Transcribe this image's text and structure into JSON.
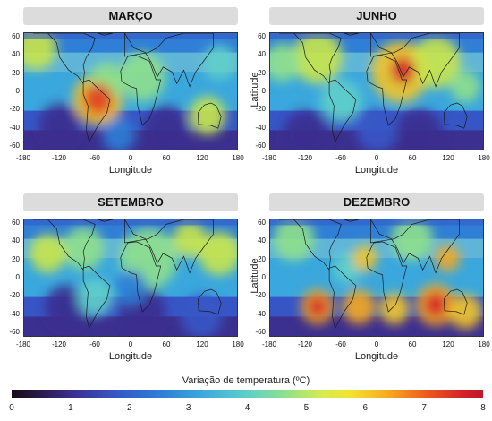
{
  "panels": [
    {
      "title": "MARÇO",
      "show_ylabel": false,
      "blobs": [
        {
          "lon": -55,
          "lat": -8,
          "r": 18,
          "color": "#e33d1f"
        },
        {
          "lon": -55,
          "lat": -8,
          "r": 30,
          "color": "#f2c52a"
        },
        {
          "lon": -40,
          "lat": 10,
          "r": 22,
          "color": "#8fe08c"
        },
        {
          "lon": -160,
          "lat": 45,
          "r": 25,
          "color": "#c9e64a"
        },
        {
          "lon": 20,
          "lat": 15,
          "r": 28,
          "color": "#8fe08c"
        },
        {
          "lon": 130,
          "lat": -25,
          "r": 22,
          "color": "#c9e64a"
        },
        {
          "lon": 150,
          "lat": 30,
          "r": 20,
          "color": "#5fcfc9"
        },
        {
          "lon": -120,
          "lat": -35,
          "r": 25,
          "color": "#3b2f8f"
        },
        {
          "lon": 60,
          "lat": -40,
          "r": 28,
          "color": "#3b2f8f"
        },
        {
          "lon": -20,
          "lat": -45,
          "r": 20,
          "color": "#2f7fd6"
        }
      ]
    },
    {
      "title": "JUNHO",
      "show_ylabel": true,
      "blobs": [
        {
          "lon": 45,
          "lat": 22,
          "r": 15,
          "color": "#d4202a"
        },
        {
          "lon": 40,
          "lat": 20,
          "r": 35,
          "color": "#f2c52a"
        },
        {
          "lon": 100,
          "lat": 30,
          "r": 30,
          "color": "#c9e64a"
        },
        {
          "lon": -100,
          "lat": 35,
          "r": 30,
          "color": "#c9e64a"
        },
        {
          "lon": -160,
          "lat": 30,
          "r": 22,
          "color": "#8fe08c"
        },
        {
          "lon": 150,
          "lat": 5,
          "r": 18,
          "color": "#8fe08c"
        },
        {
          "lon": -60,
          "lat": -10,
          "r": 25,
          "color": "#5fcfc9"
        },
        {
          "lon": -120,
          "lat": -45,
          "r": 28,
          "color": "#3b2f8f"
        },
        {
          "lon": 70,
          "lat": -45,
          "r": 30,
          "color": "#3b2f8f"
        },
        {
          "lon": 0,
          "lat": -40,
          "r": 25,
          "color": "#3656c6"
        }
      ]
    },
    {
      "title": "SETEMBRO",
      "show_ylabel": false,
      "blobs": [
        {
          "lon": 150,
          "lat": 25,
          "r": 25,
          "color": "#c9e64a"
        },
        {
          "lon": -140,
          "lat": 25,
          "r": 22,
          "color": "#c9e64a"
        },
        {
          "lon": 30,
          "lat": 20,
          "r": 35,
          "color": "#8fe08c"
        },
        {
          "lon": -80,
          "lat": 30,
          "r": 25,
          "color": "#8fe08c"
        },
        {
          "lon": 100,
          "lat": 40,
          "r": 20,
          "color": "#c9e64a"
        },
        {
          "lon": -60,
          "lat": -20,
          "r": 22,
          "color": "#5fcfc9"
        },
        {
          "lon": -110,
          "lat": -30,
          "r": 25,
          "color": "#3b2f8f"
        },
        {
          "lon": 20,
          "lat": -35,
          "r": 28,
          "color": "#3b2f8f"
        },
        {
          "lon": 120,
          "lat": -40,
          "r": 25,
          "color": "#3656c6"
        },
        {
          "lon": 0,
          "lat": -10,
          "r": 20,
          "color": "#2f7fd6"
        }
      ]
    },
    {
      "title": "DEZEMBRO",
      "show_ylabel": true,
      "blobs": [
        {
          "lon": -100,
          "lat": -30,
          "r": 12,
          "color": "#d4202a"
        },
        {
          "lon": -100,
          "lat": -30,
          "r": 20,
          "color": "#f6a91f"
        },
        {
          "lon": -30,
          "lat": -30,
          "r": 20,
          "color": "#f6a91f"
        },
        {
          "lon": 30,
          "lat": -32,
          "r": 18,
          "color": "#f2c52a"
        },
        {
          "lon": 100,
          "lat": -28,
          "r": 14,
          "color": "#d4202a"
        },
        {
          "lon": 100,
          "lat": -28,
          "r": 24,
          "color": "#f6a91f"
        },
        {
          "lon": 150,
          "lat": -35,
          "r": 20,
          "color": "#f2c52a"
        },
        {
          "lon": 120,
          "lat": 20,
          "r": 15,
          "color": "#f6a91f"
        },
        {
          "lon": -20,
          "lat": 20,
          "r": 15,
          "color": "#f2c52a"
        },
        {
          "lon": -140,
          "lat": 40,
          "r": 25,
          "color": "#8fe08c"
        },
        {
          "lon": 60,
          "lat": 40,
          "r": 25,
          "color": "#8fe08c"
        },
        {
          "lon": -50,
          "lat": 10,
          "r": 18,
          "color": "#5fcfc9"
        }
      ]
    }
  ],
  "xticks": [
    "-180",
    "-120",
    "-60",
    "0",
    "60",
    "120",
    "180"
  ],
  "yticks": [
    "60",
    "40",
    "20",
    "0",
    "-20",
    "-40",
    "-60"
  ],
  "xlabel": "Longitude",
  "ylabel": "Latitude",
  "legend": {
    "title": "Variação de temperatura (ºC)",
    "ticks": [
      "0",
      "1",
      "2",
      "3",
      "4",
      "5",
      "6",
      "7",
      "8"
    ]
  }
}
